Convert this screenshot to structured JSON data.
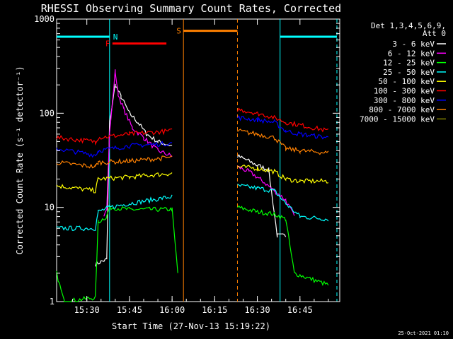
{
  "chart_data": {
    "type": "line",
    "title": "RHESSI Observing Summary Count Rates, Corrected",
    "xlabel": "Start Time (27-Nov-13 15:19:22)",
    "ylabel": "Corrected Count Rate (s⁻¹ detector⁻¹)",
    "yscale": "log",
    "ylim": [
      1,
      1000
    ],
    "xlim": [
      "15:19:22",
      "16:59:00"
    ],
    "x_ticks": [
      "15:30",
      "15:45",
      "16:00",
      "16:15",
      "16:30",
      "16:45"
    ],
    "y_ticks": [
      "1",
      "10",
      "100",
      "1000"
    ],
    "grid": false,
    "legend_placement": "right",
    "legend_header": [
      "Det 1,3,4,5,6,9,",
      "Att 0"
    ],
    "footnote": "25-Oct-2021 01:10",
    "colors": {
      "background": "#000000",
      "axes": "#ffffff"
    },
    "series": [
      {
        "name": "3 - 6 keV",
        "color": "#ffffff",
        "points": [
          [
            "15:19:22",
            null
          ],
          [
            "15:33",
            2.5
          ],
          [
            "15:37",
            2.8
          ],
          [
            "15:38",
            80
          ],
          [
            "15:40",
            200
          ],
          [
            "15:42",
            150
          ],
          [
            "15:45",
            100
          ],
          [
            "15:48",
            80
          ],
          [
            "15:51",
            60
          ],
          [
            "15:55",
            50
          ],
          [
            "16:00",
            45
          ],
          [
            "16:02",
            null
          ],
          [
            "16:23",
            35
          ],
          [
            "16:26",
            32
          ],
          [
            "16:30",
            28
          ],
          [
            "16:34",
            25
          ],
          [
            "16:37",
            5
          ],
          [
            "16:40",
            5
          ],
          [
            "16:42",
            null
          ]
        ]
      },
      {
        "name": "6 - 12 keV",
        "color": "#ff00ff",
        "points": [
          [
            "15:19:22",
            null
          ],
          [
            "15:36",
            8.5
          ],
          [
            "15:37",
            10
          ],
          [
            "15:38",
            60
          ],
          [
            "15:40",
            280
          ],
          [
            "15:41",
            160
          ],
          [
            "15:43",
            110
          ],
          [
            "15:46",
            70
          ],
          [
            "15:50",
            55
          ],
          [
            "15:55",
            40
          ],
          [
            "16:00",
            35
          ],
          [
            "16:02",
            null
          ],
          [
            "16:23",
            27
          ],
          [
            "16:27",
            24
          ],
          [
            "16:31",
            20
          ],
          [
            "16:36",
            15
          ],
          [
            "16:40",
            12
          ],
          [
            "16:43",
            8
          ]
        ]
      },
      {
        "name": "12 - 25 keV",
        "color": "#00ff00",
        "points": [
          [
            "15:19:22",
            2
          ],
          [
            "15:22",
            1
          ],
          [
            "15:33",
            1.1
          ],
          [
            "15:34",
            7
          ],
          [
            "15:37",
            8
          ],
          [
            "15:38",
            10
          ],
          [
            "15:45",
            9.5
          ],
          [
            "16:00",
            9.5
          ],
          [
            "16:02",
            2
          ],
          [
            "16:03",
            null
          ],
          [
            "16:23",
            10
          ],
          [
            "16:30",
            9
          ],
          [
            "16:36",
            8.5
          ],
          [
            "16:40",
            7.5
          ],
          [
            "16:43",
            2
          ],
          [
            "16:55",
            1.5
          ]
        ]
      },
      {
        "name": "25 - 50 keV",
        "color": "#00ffff",
        "points": [
          [
            "15:19:22",
            6
          ],
          [
            "15:33",
            6
          ],
          [
            "15:34",
            9
          ],
          [
            "15:38",
            10
          ],
          [
            "15:45",
            11
          ],
          [
            "16:00",
            13
          ],
          [
            "16:02",
            null
          ],
          [
            "16:23",
            17
          ],
          [
            "16:30",
            16
          ],
          [
            "16:36",
            15
          ],
          [
            "16:40",
            11
          ],
          [
            "16:45",
            8
          ],
          [
            "16:55",
            7.5
          ]
        ]
      },
      {
        "name": "50 - 100 keV",
        "color": "#ffff00",
        "points": [
          [
            "15:19:22",
            17
          ],
          [
            "15:33",
            15
          ],
          [
            "15:34",
            20
          ],
          [
            "15:45",
            21
          ],
          [
            "16:00",
            23
          ],
          [
            "16:02",
            null
          ],
          [
            "16:23",
            27
          ],
          [
            "16:30",
            26
          ],
          [
            "16:36",
            24
          ],
          [
            "16:40",
            20
          ],
          [
            "16:45",
            19
          ],
          [
            "16:55",
            19
          ]
        ]
      },
      {
        "name": "100 - 300 keV",
        "color": "#ff0000",
        "points": [
          [
            "15:19:22",
            55
          ],
          [
            "15:33",
            50
          ],
          [
            "15:34",
            55
          ],
          [
            "15:45",
            60
          ],
          [
            "16:00",
            65
          ],
          [
            "16:02",
            null
          ],
          [
            "16:23",
            110
          ],
          [
            "16:30",
            100
          ],
          [
            "16:36",
            90
          ],
          [
            "16:40",
            80
          ],
          [
            "16:45",
            75
          ],
          [
            "16:55",
            65
          ]
        ]
      },
      {
        "name": "300 - 800 keV",
        "color": "#0000ff",
        "points": [
          [
            "15:19:22",
            42
          ],
          [
            "15:33",
            36
          ],
          [
            "15:34",
            40
          ],
          [
            "15:45",
            45
          ],
          [
            "16:00",
            48
          ],
          [
            "16:02",
            null
          ],
          [
            "16:23",
            90
          ],
          [
            "16:30",
            85
          ],
          [
            "16:36",
            80
          ],
          [
            "16:40",
            65
          ],
          [
            "16:45",
            60
          ],
          [
            "16:55",
            55
          ]
        ]
      },
      {
        "name": "800 - 7000 keV",
        "color": "#ff8000",
        "points": [
          [
            "15:19:22",
            30
          ],
          [
            "15:33",
            27
          ],
          [
            "15:34",
            30
          ],
          [
            "15:45",
            31
          ],
          [
            "16:00",
            34
          ],
          [
            "16:02",
            null
          ],
          [
            "16:23",
            65
          ],
          [
            "16:30",
            60
          ],
          [
            "16:36",
            55
          ],
          [
            "16:40",
            42
          ],
          [
            "16:45",
            40
          ],
          [
            "16:55",
            38
          ]
        ]
      },
      {
        "name": "7000 - 15000 keV",
        "color": "#808000",
        "points": []
      }
    ],
    "annotations": [
      {
        "label": "N",
        "color": "#00ffff",
        "y": 650,
        "start": "15:19:22",
        "end": "15:38",
        "line_start": "15:38",
        "line_end": null
      },
      {
        "label": "",
        "color": "#00ffff",
        "y": 650,
        "start": "16:38",
        "end": "16:58",
        "line_start": "16:38",
        "line_end": "16:58"
      },
      {
        "label": "F",
        "color": "#ff0000",
        "y": 550,
        "start": "15:39",
        "end": "15:58",
        "line_start": null,
        "line_end": null
      },
      {
        "label": "S",
        "color": "#ff8000",
        "y": 750,
        "start": "16:04",
        "end": "16:23",
        "line_start": "16:04",
        "line_end": "16:23"
      }
    ]
  }
}
